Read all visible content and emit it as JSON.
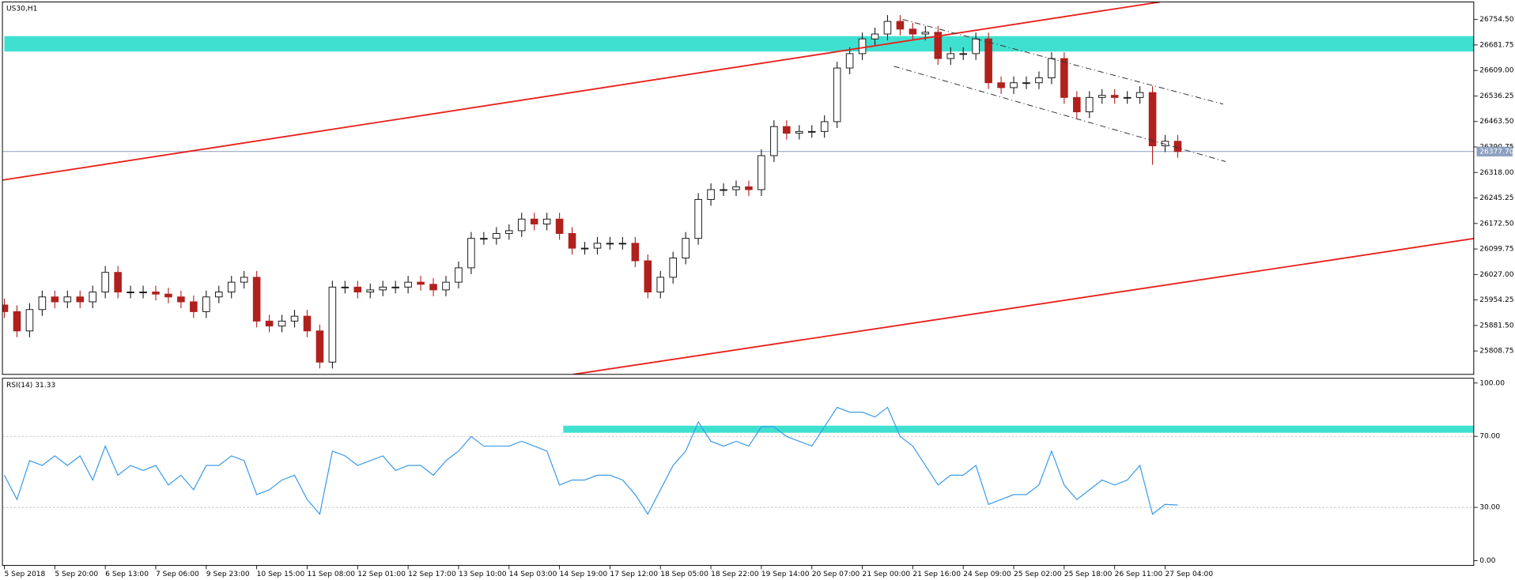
{
  "chart_data": [
    {
      "type": "candlestick",
      "title": "US30,H1",
      "categories": [
        "5 Sep 2018",
        null,
        null,
        null,
        "5 Sep 20:00",
        null,
        null,
        null,
        "6 Sep 13:00",
        null,
        null,
        null,
        "7 Sep 06:00",
        null,
        null,
        null,
        "9 Sep 23:00",
        null,
        null,
        null,
        "10 Sep 15:00",
        null,
        null,
        null,
        "11 Sep 08:00",
        null,
        null,
        null,
        "12 Sep 01:00",
        null,
        null,
        null,
        "12 Sep 17:00",
        null,
        null,
        null,
        "13 Sep 10:00",
        null,
        null,
        null,
        "14 Sep 03:00",
        null,
        null,
        null,
        "14 Sep 19:00",
        null,
        null,
        null,
        "17 Sep 12:00",
        null,
        null,
        null,
        "18 Sep 05:00",
        null,
        null,
        null,
        "18 Sep 22:00",
        null,
        null,
        null,
        "19 Sep 14:00",
        null,
        null,
        null,
        "20 Sep 07:00",
        null,
        null,
        null,
        "21 Sep 00:00",
        null,
        null,
        null,
        "21 Sep 16:00",
        null,
        null,
        null,
        "24 Sep 09:00",
        null,
        null,
        null,
        "25 Sep 02:00",
        null,
        null,
        null,
        "25 Sep 18:00",
        null,
        null,
        null,
        "26 Sep 11:00",
        null,
        null,
        null,
        "27 Sep 04:00",
        null
      ],
      "open": [
        25940,
        25921,
        25866,
        25927,
        25963,
        25949,
        25963,
        25949,
        25977,
        26033,
        25977,
        25977,
        25977,
        25971,
        25963,
        25949,
        25921,
        25963,
        25977,
        26005,
        26019,
        25894,
        25880,
        25894,
        25908,
        25866,
        25777,
        25991,
        25991,
        25977,
        25983,
        25991,
        25991,
        26005,
        25999,
        25983,
        26005,
        26046,
        26130,
        26130,
        26144,
        26152,
        26185,
        26171,
        26185,
        26144,
        26102,
        26102,
        26116,
        26116,
        26116,
        26066,
        25977,
        26019,
        26074,
        26130,
        26241,
        26269,
        26269,
        26277,
        26269,
        26366,
        26449,
        26430,
        26435,
        26435,
        26463,
        26616,
        26657,
        26699,
        26713,
        26749,
        26727,
        26713,
        26718,
        26643,
        26657,
        26657,
        26699,
        26574,
        26560,
        26574,
        26574,
        26588,
        26643,
        26532,
        26491,
        26532,
        26538,
        26532,
        26532,
        26546,
        26394,
        26407
      ],
      "high": [
        25958,
        25939,
        25945,
        25981,
        25981,
        25981,
        25981,
        25995,
        26051,
        26051,
        25995,
        25995,
        25995,
        25989,
        25981,
        25967,
        25981,
        25995,
        26023,
        26037,
        26037,
        25912,
        25912,
        25926,
        25926,
        25884,
        26009,
        26009,
        26009,
        26001,
        26009,
        26009,
        26023,
        26023,
        26017,
        26023,
        26064,
        26148,
        26148,
        26162,
        26170,
        26203,
        26203,
        26203,
        26203,
        26162,
        26120,
        26134,
        26134,
        26134,
        26134,
        26084,
        26037,
        26092,
        26148,
        26259,
        26287,
        26287,
        26295,
        26295,
        26384,
        26467,
        26467,
        26453,
        26453,
        26481,
        26634,
        26675,
        26717,
        26731,
        26767,
        26767,
        26745,
        26736,
        26736,
        26675,
        26675,
        26717,
        26717,
        26592,
        26592,
        26592,
        26606,
        26661,
        26661,
        26550,
        26550,
        26556,
        26556,
        26550,
        26564,
        26564,
        26425,
        26425
      ],
      "low": [
        25903,
        25848,
        25848,
        25909,
        25931,
        25931,
        25931,
        25931,
        25959,
        25959,
        25959,
        25959,
        25953,
        25945,
        25931,
        25903,
        25903,
        25945,
        25959,
        25987,
        25876,
        25862,
        25862,
        25876,
        25848,
        25759,
        25759,
        25973,
        25959,
        25959,
        25965,
        25973,
        25973,
        25981,
        25965,
        25965,
        25987,
        26028,
        26112,
        26112,
        26126,
        26134,
        26153,
        26153,
        26126,
        26084,
        26084,
        26084,
        26098,
        26098,
        26048,
        25959,
        25959,
        26001,
        26056,
        26112,
        26223,
        26251,
        26251,
        26251,
        26251,
        26348,
        26412,
        26412,
        26417,
        26417,
        26445,
        26598,
        26639,
        26681,
        26695,
        26709,
        26695,
        26695,
        26625,
        26625,
        26639,
        26639,
        26556,
        26542,
        26542,
        26556,
        26556,
        26570,
        26514,
        26473,
        26473,
        26514,
        26514,
        26514,
        26514,
        26340,
        26376,
        26360
      ],
      "close": [
        25921,
        25866,
        25927,
        25963,
        25949,
        25963,
        25949,
        25977,
        26033,
        25977,
        25977,
        25977,
        25971,
        25963,
        25949,
        25921,
        25963,
        25977,
        26005,
        26019,
        25894,
        25880,
        25894,
        25908,
        25866,
        25777,
        25991,
        25991,
        25977,
        25983,
        25991,
        25991,
        26005,
        25999,
        25983,
        26005,
        26046,
        26130,
        26130,
        26144,
        26152,
        26185,
        26171,
        26185,
        26144,
        26102,
        26102,
        26116,
        26116,
        26116,
        26066,
        25977,
        26019,
        26074,
        26130,
        26241,
        26269,
        26269,
        26277,
        26269,
        26366,
        26449,
        26430,
        26435,
        26435,
        26463,
        26616,
        26657,
        26699,
        26713,
        26749,
        26727,
        26713,
        26718,
        26643,
        26657,
        26657,
        26699,
        26574,
        26560,
        26574,
        26574,
        26588,
        26643,
        26532,
        26491,
        26532,
        26538,
        26532,
        26532,
        26546,
        26394,
        26407,
        26377.7
      ],
      "up_color": "#1a1a1a",
      "down_color": "#b0201c",
      "ylim": [
        25742,
        26804.5
      ],
      "yticks": [
        {
          "value": 26754.5,
          "label": "26754.50"
        },
        26681.75,
        {
          "value": 26609,
          "label": "26609.00"
        },
        26536.25,
        {
          "value": 26463.5,
          "label": "26463.50"
        },
        26390.75,
        {
          "value": 26318,
          "label": "26318.00"
        },
        26245.25,
        {
          "value": 26172.5,
          "label": "26172.50"
        },
        26099.75,
        {
          "value": 26027,
          "label": "26027.00"
        },
        25954.25,
        {
          "value": 25881.5,
          "label": "25881.50"
        },
        25808.75
      ],
      "last_price": {
        "value": 26377.7,
        "label": "26377.70",
        "color": "#8c9fbf"
      },
      "zones": [
        {
          "start": 0,
          "from": 26663,
          "to": 26707,
          "color": "#40e0d0"
        }
      ],
      "lines": [
        {
          "x": [
            -0.15,
            91.6
          ],
          "y": [
            26296.3,
            26804.5
          ],
          "color": "#e8201a",
          "dashed": false
        },
        {
          "x": [
            45.1,
            116.5
          ],
          "y": [
            25742,
            26129.7
          ],
          "color": "#e8201a",
          "dashed": false
        },
        {
          "x": [
            71.2,
            96.6
          ],
          "y": [
            26754.5,
            26513
          ],
          "color": "#333333",
          "dashed": true
        },
        {
          "x": [
            70.5,
            96.8
          ],
          "y": [
            26621,
            26349
          ],
          "color": "#333333",
          "dashed": true
        }
      ]
    },
    {
      "type": "line",
      "title": "RSI(14) 31.33",
      "color": "#3d9be9",
      "values": [
        48.1,
        34.4,
        56.3,
        53.6,
        59.0,
        53.6,
        59.0,
        45.4,
        64.5,
        48.1,
        53.6,
        50.8,
        53.6,
        42.6,
        48.1,
        39.9,
        53.6,
        53.6,
        59.0,
        56.3,
        37.2,
        39.9,
        45.4,
        48.1,
        34.4,
        26.2,
        61.7,
        59.0,
        53.6,
        56.3,
        59.0,
        50.8,
        53.6,
        53.6,
        48.1,
        56.3,
        61.7,
        69.9,
        64.5,
        64.5,
        64.5,
        67.2,
        64.5,
        61.7,
        42.6,
        45.4,
        45.4,
        48.1,
        48.1,
        45.4,
        37.2,
        26.2,
        39.9,
        53.6,
        61.7,
        78.1,
        67.2,
        64.5,
        67.2,
        64.5,
        75.4,
        75.4,
        69.9,
        67.2,
        64.5,
        75.4,
        86.3,
        83.6,
        83.6,
        80.9,
        86.3,
        69.9,
        64.5,
        53.6,
        42.6,
        48.1,
        48.1,
        53.6,
        31.7,
        34.4,
        37.2,
        37.2,
        42.6,
        61.7,
        42.6,
        34.4,
        39.9,
        45.4,
        42.6,
        45.4,
        53.6,
        26.2,
        31.7,
        31.33
      ],
      "ylim": [
        -2.7,
        102.7
      ],
      "yticks": [
        {
          "value": 100,
          "label": "100.00"
        },
        {
          "value": 70,
          "label": "70.00"
        },
        {
          "value": 30,
          "label": "30.00"
        },
        {
          "value": 0,
          "label": "0.00"
        }
      ],
      "levels": [
        70,
        30
      ],
      "zones": [
        {
          "start": 44.3,
          "from": 72,
          "to": 76,
          "color": "#40e0d0"
        }
      ]
    }
  ]
}
